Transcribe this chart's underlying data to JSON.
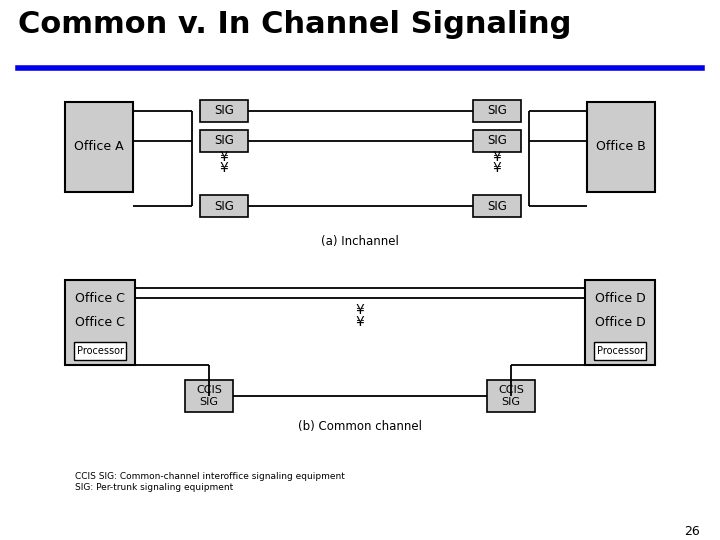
{
  "title": "Common v. In Channel Signaling",
  "title_fontsize": 22,
  "blue_line_color": "#0000EE",
  "box_facecolor": "#CCCCCC",
  "line_color": "#000000",
  "bg_color": "#FFFFFF",
  "page_number": "26",
  "footnote1": "CCIS SIG: Common-channel interoffice signaling equipment",
  "footnote2": "SIG: Per-trunk signaling equipment",
  "caption_a": "(a) Inchannel",
  "caption_b": "(b) Common channel",
  "down_arrow": "¥",
  "label_officeA": "Office A",
  "label_officeB": "Office B",
  "label_officeC": "Office C",
  "label_officeD": "Office D",
  "label_processor": "Processor",
  "label_SIG": "SIG",
  "label_CCIS_SIG": "CCIS\nSIG",
  "office_box_fc": "#CCCCCC",
  "sig_box_fc": "#CCCCCC",
  "proc_box_fc": "#FFFFFF"
}
